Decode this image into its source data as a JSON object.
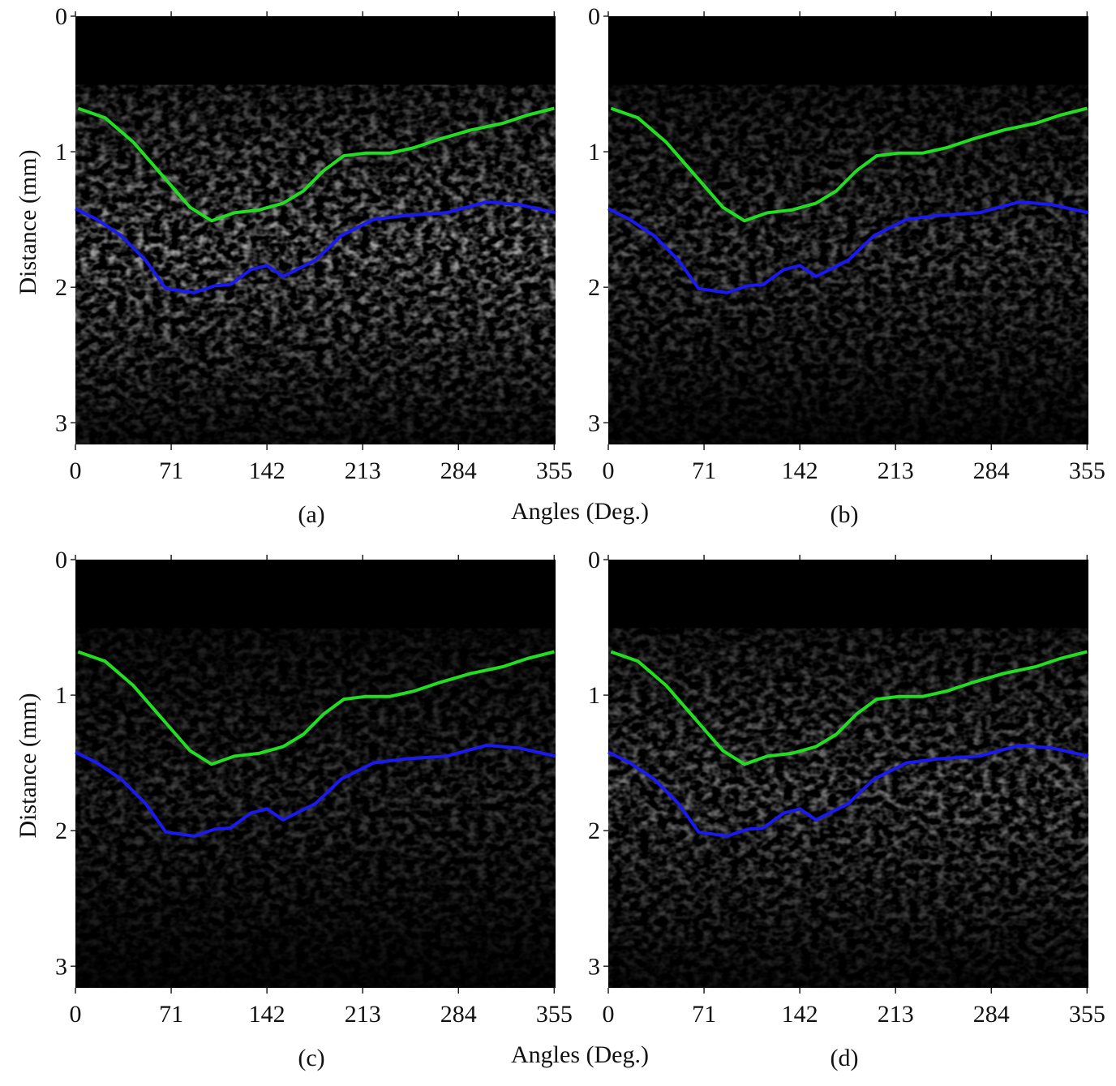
{
  "chart_data": [
    {
      "type": "line",
      "label": "(a)",
      "y_label": "Distance (mm)",
      "x_label": "Angles (Deg.)",
      "xlim": [
        0,
        356
      ],
      "ylim": [
        3.16,
        0
      ],
      "xticks": [
        0,
        71,
        142,
        213,
        284,
        355
      ],
      "yticks": [
        0,
        1,
        2,
        3
      ],
      "series": [
        {
          "color": "#22dd22",
          "x": [
            2,
            22,
            43,
            64,
            85,
            101,
            118,
            136,
            154,
            169,
            184,
            199,
            215,
            233,
            251,
            269,
            293,
            317,
            335,
            355
          ],
          "values": [
            0.68,
            0.75,
            0.93,
            1.17,
            1.41,
            1.51,
            1.45,
            1.43,
            1.38,
            1.29,
            1.14,
            1.03,
            1.01,
            1.01,
            0.97,
            0.91,
            0.84,
            0.79,
            0.73,
            0.68
          ]
        },
        {
          "color": "#1a1aee",
          "x": [
            0,
            16,
            34,
            52,
            67,
            88,
            103,
            115,
            130,
            142,
            154,
            178,
            197,
            221,
            245,
            275,
            305,
            329,
            356
          ],
          "values": [
            1.42,
            1.5,
            1.62,
            1.8,
            2.01,
            2.04,
            1.99,
            1.98,
            1.87,
            1.84,
            1.92,
            1.8,
            1.62,
            1.5,
            1.47,
            1.45,
            1.37,
            1.39,
            1.45
          ]
        }
      ]
    },
    {
      "type": "line",
      "label": "(b)",
      "xlim": [
        0,
        356
      ],
      "ylim": [
        3.16,
        0
      ],
      "xticks": [
        0,
        71,
        142,
        213,
        284,
        355
      ],
      "yticks": [
        0,
        1,
        2,
        3
      ],
      "series": [
        {
          "color": "#22dd22",
          "x": [
            2,
            22,
            43,
            64,
            85,
            101,
            118,
            136,
            154,
            169,
            184,
            199,
            215,
            233,
            251,
            269,
            293,
            317,
            335,
            355
          ],
          "values": [
            0.68,
            0.75,
            0.93,
            1.17,
            1.41,
            1.51,
            1.45,
            1.43,
            1.38,
            1.29,
            1.14,
            1.03,
            1.01,
            1.01,
            0.97,
            0.91,
            0.84,
            0.79,
            0.73,
            0.68
          ]
        },
        {
          "color": "#1a1aee",
          "x": [
            0,
            16,
            34,
            52,
            67,
            88,
            103,
            115,
            130,
            142,
            154,
            178,
            197,
            221,
            245,
            275,
            305,
            329,
            356
          ],
          "values": [
            1.42,
            1.5,
            1.62,
            1.8,
            2.01,
            2.04,
            1.99,
            1.98,
            1.87,
            1.84,
            1.92,
            1.8,
            1.62,
            1.5,
            1.47,
            1.45,
            1.37,
            1.39,
            1.45
          ]
        }
      ]
    },
    {
      "type": "line",
      "label": "(c)",
      "y_label": "Distance (mm)",
      "x_label": "Angles (Deg.)",
      "xlim": [
        0,
        356
      ],
      "ylim": [
        3.16,
        0
      ],
      "xticks": [
        0,
        71,
        142,
        213,
        284,
        355
      ],
      "yticks": [
        0,
        1,
        2,
        3
      ],
      "series": [
        {
          "color": "#22dd22",
          "x": [
            2,
            22,
            43,
            64,
            85,
            101,
            118,
            136,
            154,
            169,
            184,
            199,
            215,
            233,
            251,
            269,
            293,
            317,
            335,
            355
          ],
          "values": [
            0.68,
            0.75,
            0.93,
            1.17,
            1.41,
            1.51,
            1.45,
            1.43,
            1.38,
            1.29,
            1.14,
            1.03,
            1.01,
            1.01,
            0.97,
            0.91,
            0.84,
            0.79,
            0.73,
            0.68
          ]
        },
        {
          "color": "#1a1aee",
          "x": [
            0,
            16,
            34,
            52,
            67,
            88,
            103,
            115,
            130,
            142,
            154,
            178,
            197,
            221,
            245,
            275,
            305,
            329,
            356
          ],
          "values": [
            1.42,
            1.5,
            1.62,
            1.8,
            2.01,
            2.04,
            1.99,
            1.98,
            1.87,
            1.84,
            1.92,
            1.8,
            1.62,
            1.5,
            1.47,
            1.45,
            1.37,
            1.39,
            1.45
          ]
        }
      ]
    },
    {
      "type": "line",
      "label": "(d)",
      "xlim": [
        0,
        356
      ],
      "ylim": [
        3.16,
        0
      ],
      "xticks": [
        0,
        71,
        142,
        213,
        284,
        355
      ],
      "yticks": [
        0,
        1,
        2,
        3
      ],
      "series": [
        {
          "color": "#22dd22",
          "x": [
            2,
            22,
            43,
            64,
            85,
            101,
            118,
            136,
            154,
            169,
            184,
            199,
            215,
            233,
            251,
            269,
            293,
            317,
            335,
            355
          ],
          "values": [
            0.68,
            0.75,
            0.93,
            1.17,
            1.41,
            1.51,
            1.45,
            1.43,
            1.38,
            1.29,
            1.14,
            1.03,
            1.01,
            1.01,
            0.97,
            0.91,
            0.84,
            0.79,
            0.73,
            0.68
          ]
        },
        {
          "color": "#1a1aee",
          "x": [
            0,
            16,
            34,
            52,
            67,
            88,
            103,
            115,
            130,
            142,
            154,
            178,
            197,
            221,
            245,
            275,
            305,
            329,
            356
          ],
          "values": [
            1.42,
            1.5,
            1.62,
            1.8,
            2.01,
            2.04,
            1.99,
            1.98,
            1.87,
            1.84,
            1.92,
            1.8,
            1.62,
            1.5,
            1.47,
            1.45,
            1.37,
            1.39,
            1.45
          ]
        }
      ]
    }
  ]
}
